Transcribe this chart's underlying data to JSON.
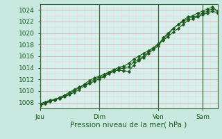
{
  "bg_color": "#c8e8e0",
  "plot_bg_color": "#d8f0ec",
  "grid_color_major": "#d4a0a0",
  "grid_color_minor": "#e8c8c8",
  "line_color": "#1a5c1a",
  "xlabel": "Pression niveau de la mer( hPa )",
  "ylim": [
    1007,
    1025
  ],
  "xlim": [
    0,
    144
  ],
  "yticks": [
    1008,
    1010,
    1012,
    1014,
    1016,
    1018,
    1020,
    1022,
    1024
  ],
  "day_labels": [
    "Jeu",
    "Dim",
    "Ven",
    "Sam"
  ],
  "day_positions": [
    0,
    48,
    96,
    132
  ],
  "vline_color": "#446644",
  "xlabel_fontsize": 7.5,
  "tick_fontsize": 6.5,
  "tick_label_color": "#1a5c1a",
  "lines": {
    "line1_x": [
      0,
      4,
      8,
      12,
      16,
      20,
      24,
      28,
      32,
      36,
      40,
      44,
      48,
      52,
      56,
      60,
      64,
      68,
      72,
      76,
      80,
      84,
      88,
      92,
      96,
      100,
      104,
      108,
      112,
      116,
      120,
      124,
      128,
      132,
      136,
      140,
      144
    ],
    "line1_y": [
      1007.8,
      1008.1,
      1008.4,
      1008.5,
      1008.7,
      1009.0,
      1009.4,
      1009.8,
      1010.3,
      1010.9,
      1011.3,
      1011.7,
      1012.1,
      1012.5,
      1013.0,
      1013.4,
      1013.8,
      1014.0,
      1014.2,
      1015.0,
      1015.5,
      1016.0,
      1016.8,
      1017.5,
      1018.2,
      1018.8,
      1019.4,
      1020.2,
      1020.8,
      1021.5,
      1022.2,
      1022.5,
      1022.8,
      1023.2,
      1023.5,
      1023.8,
      1023.5
    ],
    "line2_x": [
      0,
      4,
      8,
      12,
      16,
      20,
      24,
      28,
      32,
      36,
      40,
      44,
      48,
      52,
      56,
      60,
      64,
      68,
      72,
      76,
      80,
      84,
      88,
      92,
      96,
      100,
      104,
      108,
      112,
      116,
      120,
      124,
      128,
      132,
      136,
      140,
      144
    ],
    "line2_y": [
      1007.5,
      1007.8,
      1008.2,
      1008.5,
      1008.9,
      1009.3,
      1009.8,
      1010.3,
      1010.7,
      1011.0,
      1011.5,
      1012.0,
      1012.4,
      1012.7,
      1013.2,
      1013.5,
      1013.6,
      1013.5,
      1013.4,
      1014.5,
      1015.3,
      1015.8,
      1016.5,
      1017.2,
      1017.8,
      1019.0,
      1019.8,
      1020.8,
      1021.5,
      1022.2,
      1022.8,
      1023.0,
      1023.5,
      1023.8,
      1024.2,
      1024.5,
      1023.8
    ],
    "line3_x": [
      0,
      4,
      8,
      12,
      16,
      20,
      24,
      28,
      32,
      36,
      40,
      44,
      48,
      52,
      56,
      60,
      64,
      68,
      72,
      76,
      80,
      84,
      88,
      92,
      96,
      100,
      104,
      108,
      112,
      116,
      120,
      124,
      128,
      132,
      136,
      140,
      144
    ],
    "line3_y": [
      1007.6,
      1007.9,
      1008.3,
      1008.6,
      1008.8,
      1009.2,
      1009.6,
      1010.1,
      1010.6,
      1011.2,
      1011.8,
      1012.3,
      1012.5,
      1012.9,
      1013.3,
      1013.7,
      1014.1,
      1014.3,
      1014.8,
      1015.5,
      1016.0,
      1016.5,
      1017.0,
      1017.5,
      1018.0,
      1019.2,
      1020.0,
      1020.8,
      1021.5,
      1022.0,
      1022.5,
      1022.8,
      1023.0,
      1023.5,
      1023.8,
      1024.2,
      1023.8
    ]
  }
}
